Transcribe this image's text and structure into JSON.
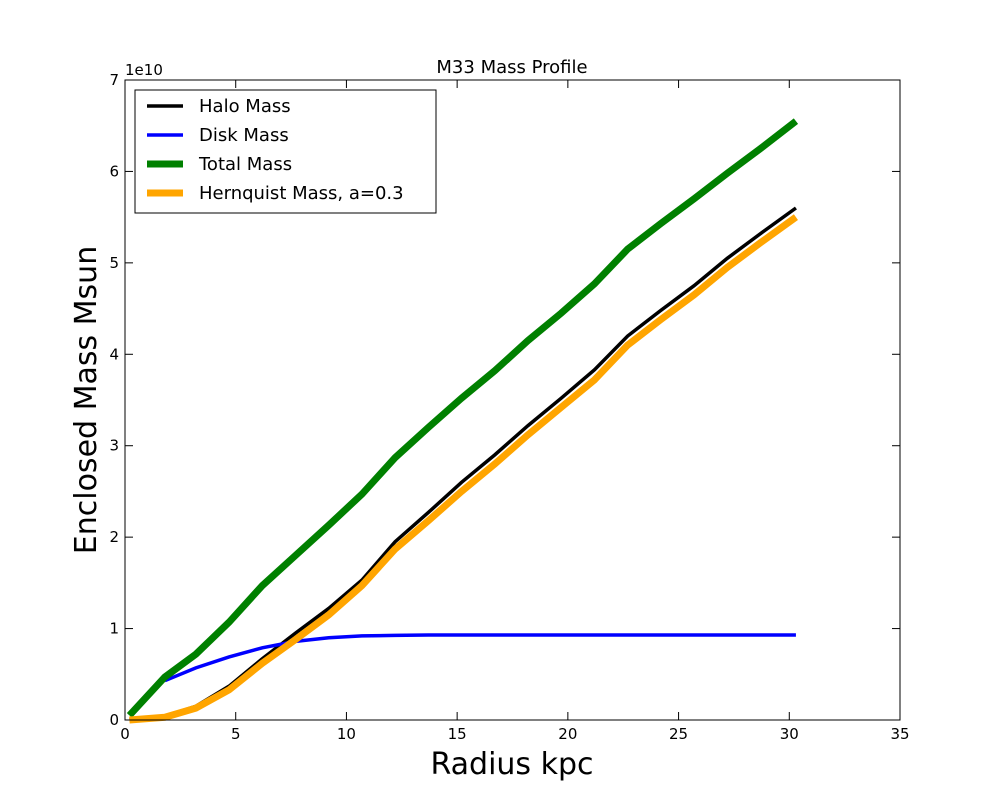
{
  "chart_data": {
    "type": "line",
    "title": "M33 Mass Profile",
    "xlabel": "Radius kpc",
    "ylabel": "Enclosed Mass Msun",
    "xlim": [
      0,
      35
    ],
    "ylim": [
      0,
      7
    ],
    "y_offset_label": "1e10",
    "x_ticks": [
      0,
      5,
      10,
      15,
      20,
      25,
      30,
      35
    ],
    "y_ticks": [
      0,
      1,
      2,
      3,
      4,
      5,
      6,
      7
    ],
    "grid": false,
    "legend_position": "upper-left",
    "series": [
      {
        "name": "Halo Mass",
        "color": "#000000",
        "style": "medium",
        "x": [
          0.2,
          1.8,
          3.2,
          4.7,
          6.2,
          7.7,
          9.2,
          10.7,
          12.2,
          13.7,
          15.2,
          16.7,
          18.2,
          19.7,
          21.2,
          22.7,
          24.2,
          25.7,
          27.2,
          28.7,
          30.3
        ],
        "values": [
          0.0,
          0.04,
          0.15,
          0.37,
          0.67,
          0.95,
          1.22,
          1.53,
          1.95,
          2.27,
          2.6,
          2.9,
          3.22,
          3.52,
          3.83,
          4.2,
          4.48,
          4.75,
          5.05,
          5.32,
          5.6
        ]
      },
      {
        "name": "Disk Mass",
        "color": "#0000ff",
        "style": "medium",
        "x": [
          1.8,
          3.2,
          4.7,
          6.2,
          7.7,
          9.2,
          10.7,
          12.2,
          13.7,
          15.2,
          16.7,
          18.2,
          19.7,
          21.2,
          22.7,
          24.2,
          25.7,
          27.2,
          28.7,
          30.3
        ],
        "values": [
          0.43,
          0.57,
          0.69,
          0.79,
          0.86,
          0.9,
          0.92,
          0.925,
          0.93,
          0.93,
          0.93,
          0.93,
          0.93,
          0.93,
          0.93,
          0.93,
          0.93,
          0.93,
          0.93,
          0.93
        ]
      },
      {
        "name": "Total Mass",
        "color": "#008000",
        "style": "thick",
        "x": [
          0.2,
          1.8,
          3.2,
          4.7,
          6.2,
          7.7,
          9.2,
          10.7,
          12.2,
          13.7,
          15.2,
          16.7,
          18.2,
          19.7,
          21.2,
          22.7,
          24.2,
          25.7,
          27.2,
          28.7,
          30.3
        ],
        "values": [
          0.05,
          0.47,
          0.72,
          1.07,
          1.47,
          1.8,
          2.13,
          2.47,
          2.87,
          3.2,
          3.52,
          3.82,
          4.15,
          4.45,
          4.77,
          5.15,
          5.43,
          5.7,
          5.98,
          6.25,
          6.55
        ]
      },
      {
        "name": "Hernquist Mass, a=0.3",
        "color": "#ffa500",
        "style": "thick",
        "x": [
          0.2,
          1.8,
          3.2,
          4.7,
          6.2,
          7.7,
          9.2,
          10.7,
          12.2,
          13.7,
          15.2,
          16.7,
          18.2,
          19.7,
          21.2,
          22.7,
          24.2,
          25.7,
          27.2,
          28.7,
          30.3
        ],
        "values": [
          0.0,
          0.03,
          0.13,
          0.33,
          0.62,
          0.88,
          1.15,
          1.47,
          1.87,
          2.18,
          2.5,
          2.8,
          3.12,
          3.42,
          3.72,
          4.1,
          4.38,
          4.65,
          4.95,
          5.22,
          5.5
        ]
      }
    ]
  }
}
